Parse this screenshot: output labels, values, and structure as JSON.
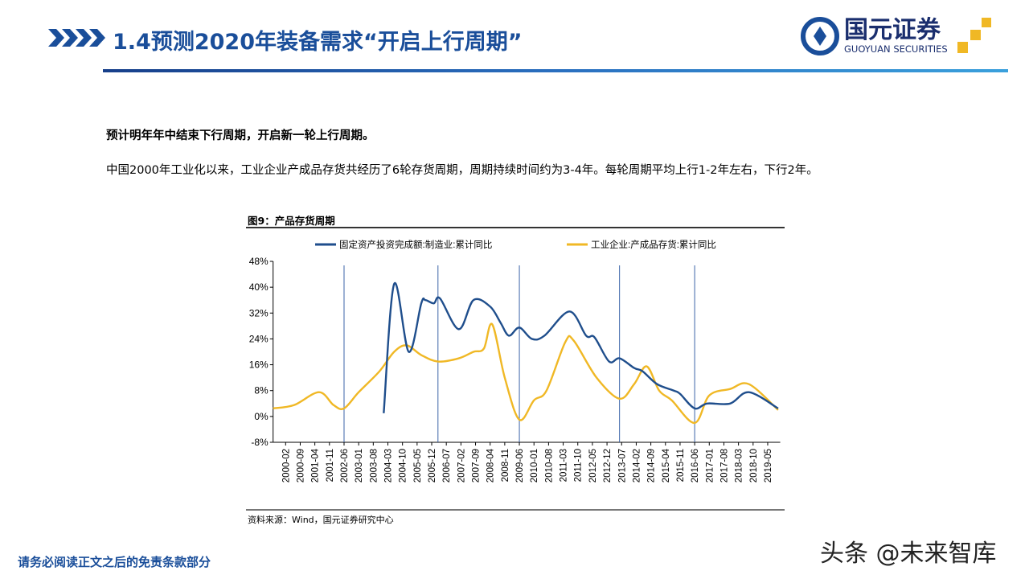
{
  "header": {
    "title": "1.4预测2020年装备需求“开启上行周期”",
    "logo_cn": "国元证券",
    "logo_en": "GUOYUAN SECURITIES",
    "brand_color": "#1a4e9a"
  },
  "lead": "预计明年年中结束下行周期，开启新一轮上行周期。",
  "body": "中国2000年工业化以来，工业企业产成品存货共经历了6轮存货周期，周期持续时间约为3-4年。每轮周期平均上行1-2年左右，下行2年。",
  "figure": {
    "title": "图9：产品存货周期",
    "source": "资料来源：Wind，国元证券研究中心"
  },
  "footer": {
    "disclaimer": "请务必阅读正文之后的免责条款部分",
    "watermark": "头条 @未来智库"
  },
  "chart_data": {
    "type": "line",
    "ylim": [
      -8,
      48
    ],
    "yticks": [
      "-8%",
      "0%",
      "8%",
      "16%",
      "24%",
      "32%",
      "40%",
      "48%"
    ],
    "ytick_values": [
      -8,
      0,
      8,
      16,
      24,
      32,
      40,
      48
    ],
    "xticks": [
      "2000-02",
      "2000-09",
      "2001-04",
      "2001-11",
      "2002-06",
      "2003-01",
      "2003-08",
      "2004-03",
      "2004-10",
      "2005-05",
      "2005-12",
      "2006-07",
      "2007-02",
      "2007-09",
      "2008-04",
      "2008-11",
      "2009-06",
      "2010-01",
      "2010-08",
      "2011-03",
      "2011-10",
      "2012-05",
      "2012-12",
      "2013-07",
      "2014-02",
      "2014-09",
      "2015-04",
      "2015-11",
      "2016-06",
      "2017-01",
      "2017-08",
      "2018-03",
      "2018-10",
      "2019-05"
    ],
    "xlim": [
      "1999-08",
      "2019-11"
    ],
    "legend_position": "top",
    "cycle_markers": [
      "2002-06",
      "2006-03",
      "2009-06",
      "2013-06",
      "2016-06"
    ],
    "series": [
      {
        "name": "固定资产投资完成额:制造业:累计同比",
        "color": "#1f4e8c",
        "points": [
          [
            "2004-01",
            1
          ],
          [
            "2004-06",
            41
          ],
          [
            "2005-01",
            20
          ],
          [
            "2005-07",
            35
          ],
          [
            "2005-09",
            36
          ],
          [
            "2006-01",
            35
          ],
          [
            "2006-04",
            36.5
          ],
          [
            "2007-01",
            27
          ],
          [
            "2007-08",
            36
          ],
          [
            "2008-04",
            34
          ],
          [
            "2008-09",
            29
          ],
          [
            "2009-01",
            25
          ],
          [
            "2009-06",
            27.5
          ],
          [
            "2009-12",
            24
          ],
          [
            "2010-06",
            25
          ],
          [
            "2011-06",
            32.5
          ],
          [
            "2012-02",
            25
          ],
          [
            "2012-06",
            24.5
          ],
          [
            "2013-01",
            17
          ],
          [
            "2013-06",
            18
          ],
          [
            "2014-01",
            15
          ],
          [
            "2014-05",
            14
          ],
          [
            "2014-12",
            10
          ],
          [
            "2015-08",
            8
          ],
          [
            "2015-11",
            7
          ],
          [
            "2016-06",
            2.5
          ],
          [
            "2016-12",
            4
          ],
          [
            "2017-11",
            4
          ],
          [
            "2018-08",
            7.5
          ],
          [
            "2019-10",
            2.5
          ]
        ]
      },
      {
        "name": "工业企业:产成品存货:累计同比",
        "color": "#f0b825",
        "points": [
          [
            "1999-08",
            2.5
          ],
          [
            "2000-06",
            3.5
          ],
          [
            "2001-06",
            7.5
          ],
          [
            "2002-01",
            3.5
          ],
          [
            "2002-06",
            2.5
          ],
          [
            "2003-01",
            7.5
          ],
          [
            "2003-11",
            14
          ],
          [
            "2004-06",
            20
          ],
          [
            "2004-12",
            22
          ],
          [
            "2005-07",
            19
          ],
          [
            "2006-03",
            17
          ],
          [
            "2007-01",
            18
          ],
          [
            "2007-08",
            20
          ],
          [
            "2008-01",
            21
          ],
          [
            "2008-05",
            28.5
          ],
          [
            "2008-11",
            12
          ],
          [
            "2009-06",
            -1
          ],
          [
            "2010-01",
            5
          ],
          [
            "2010-07",
            8
          ],
          [
            "2011-04",
            23
          ],
          [
            "2011-08",
            23.5
          ],
          [
            "2012-07",
            12
          ],
          [
            "2013-06",
            5.5
          ],
          [
            "2014-01",
            10
          ],
          [
            "2014-07",
            15.5
          ],
          [
            "2015-01",
            8
          ],
          [
            "2015-07",
            5
          ],
          [
            "2016-06",
            -2
          ],
          [
            "2017-01",
            6.5
          ],
          [
            "2017-11",
            8.5
          ],
          [
            "2018-08",
            10
          ],
          [
            "2019-10",
            2
          ]
        ]
      }
    ]
  }
}
